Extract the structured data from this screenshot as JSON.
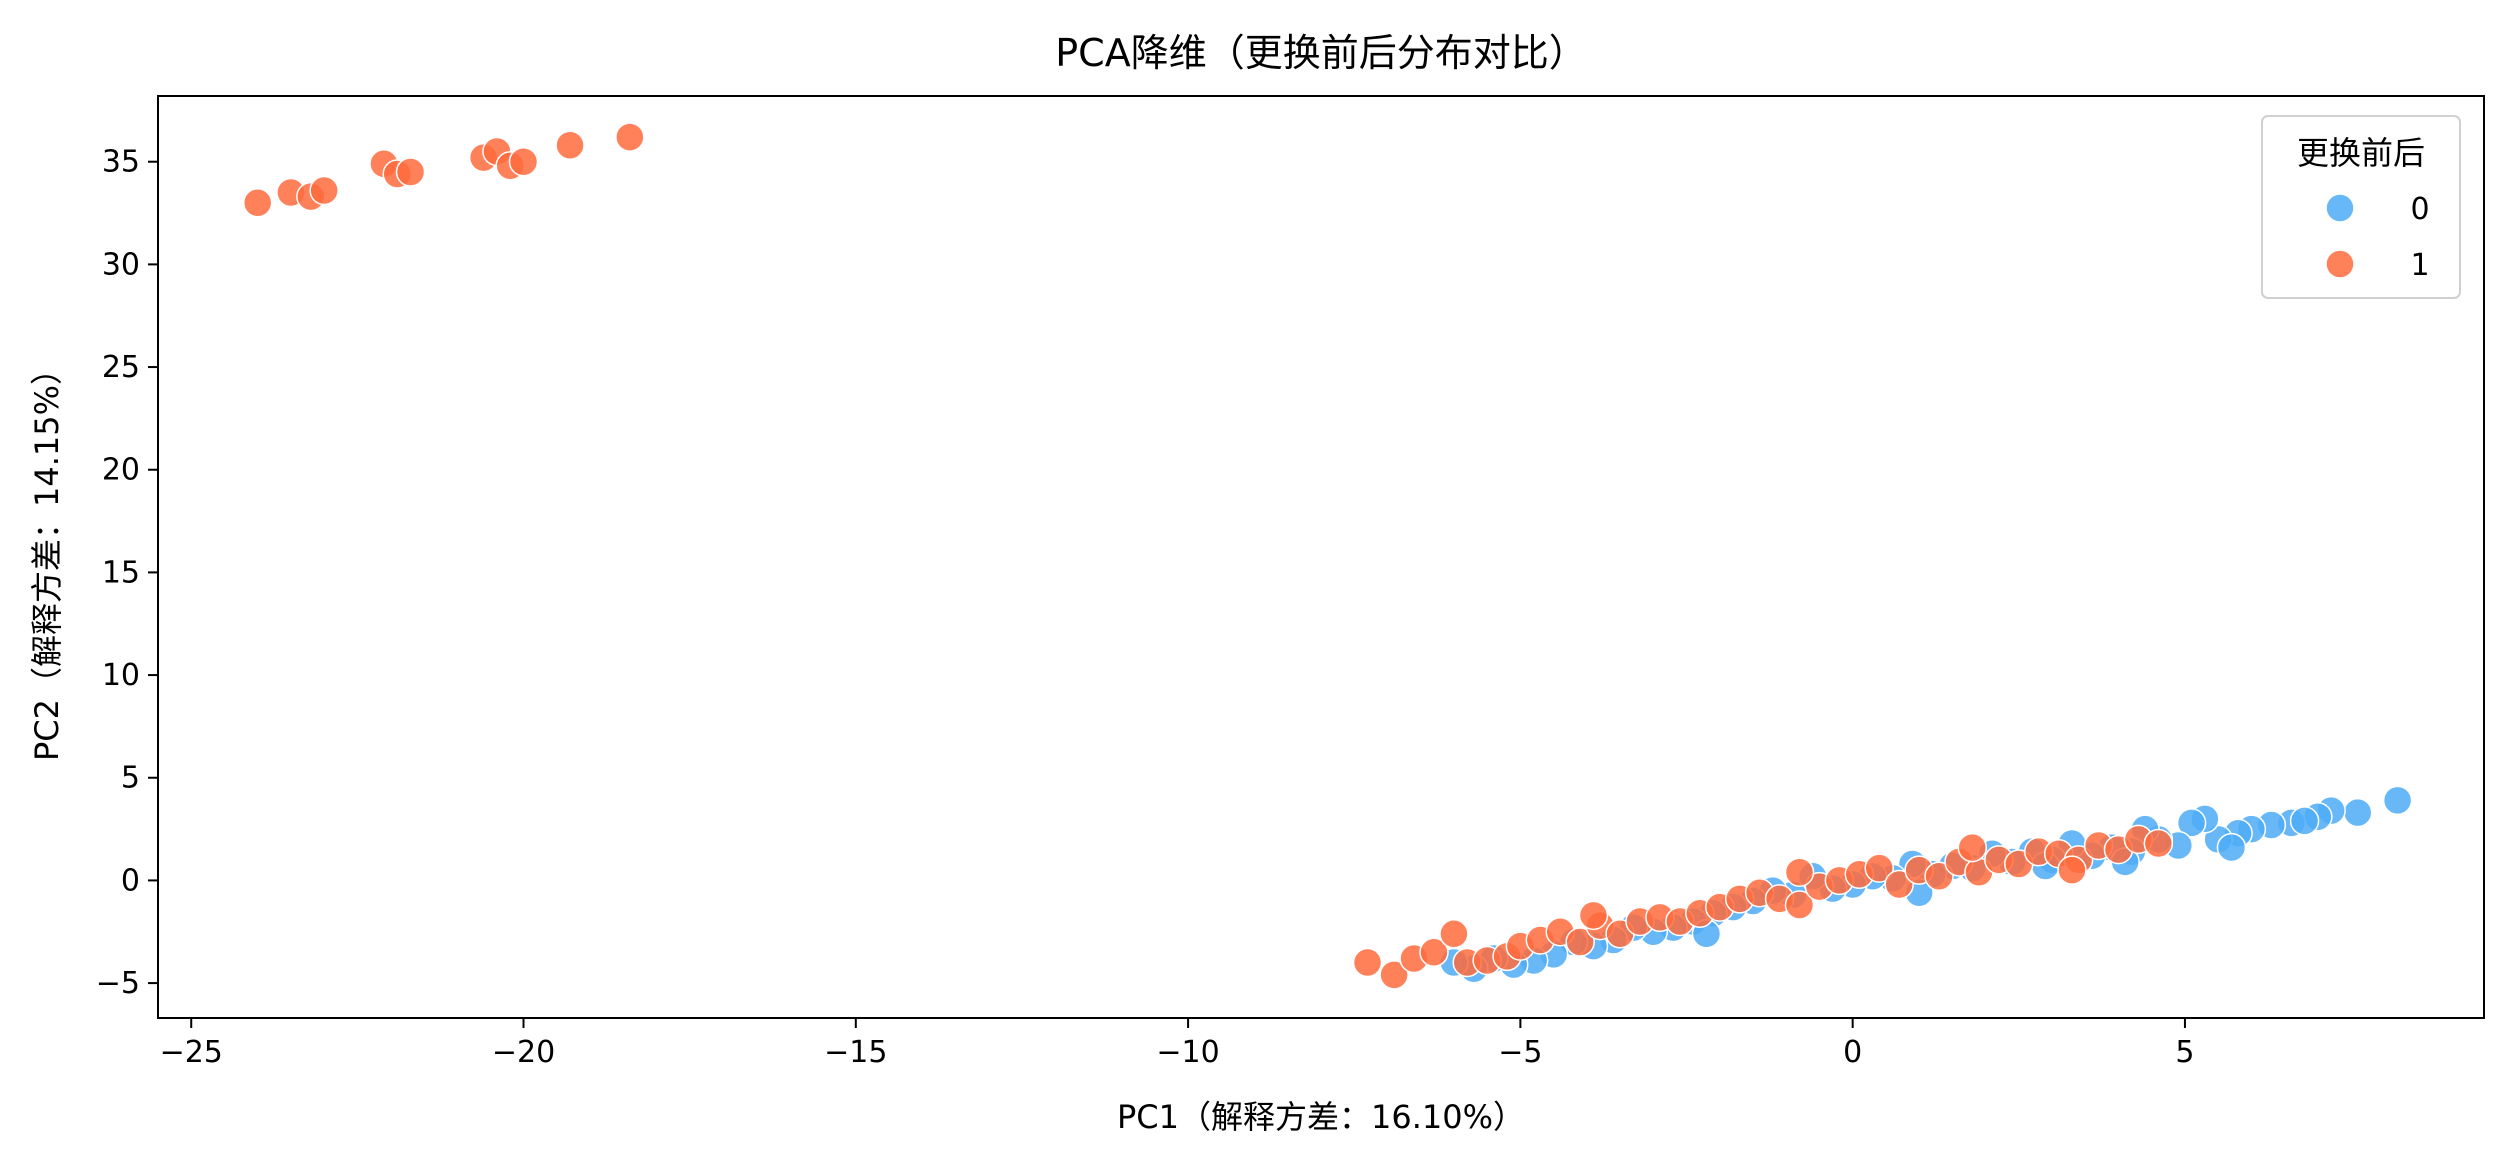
{
  "chart_data": {
    "type": "scatter",
    "title": "PCA降维（更换前后分布对比）",
    "xlabel": "PC1（解释方差：16.10%）",
    "ylabel": "PC2（解释方差：14.15%）",
    "xlim": [
      -25.5,
      9.5
    ],
    "ylim": [
      -6.7,
      38.2
    ],
    "xticks": [
      -25,
      -20,
      -15,
      -10,
      -5,
      0,
      5
    ],
    "yticks": [
      -5,
      0,
      5,
      10,
      15,
      20,
      25,
      30,
      35
    ],
    "grid": false,
    "legend": {
      "title": "更换前后",
      "position": "top-right"
    },
    "series": [
      {
        "name": "0",
        "color": "#4DABF7",
        "points": [
          [
            8.2,
            3.9
          ],
          [
            7.6,
            3.3
          ],
          [
            7.2,
            3.4
          ],
          [
            7.0,
            3.1
          ],
          [
            6.6,
            2.8
          ],
          [
            6.3,
            2.7
          ],
          [
            6.0,
            2.5
          ],
          [
            5.8,
            2.3
          ],
          [
            5.5,
            2.0
          ],
          [
            5.3,
            3.0
          ],
          [
            5.1,
            2.8
          ],
          [
            4.9,
            1.7
          ],
          [
            4.6,
            2.0
          ],
          [
            4.4,
            2.5
          ],
          [
            4.2,
            1.4
          ],
          [
            3.9,
            1.6
          ],
          [
            3.6,
            1.2
          ],
          [
            3.3,
            1.8
          ],
          [
            3.0,
            1.0
          ],
          [
            2.7,
            1.4
          ],
          [
            2.4,
            0.9
          ],
          [
            2.1,
            1.3
          ],
          [
            1.8,
            0.6
          ],
          [
            1.5,
            0.7
          ],
          [
            1.2,
            0.3
          ],
          [
            0.9,
            0.8
          ],
          [
            0.6,
            0.1
          ],
          [
            0.3,
            0.2
          ],
          [
            0.0,
            -0.2
          ],
          [
            -0.3,
            -0.4
          ],
          [
            -0.6,
            0.2
          ],
          [
            -0.9,
            -0.7
          ],
          [
            -1.2,
            -0.5
          ],
          [
            -1.5,
            -1.0
          ],
          [
            -1.8,
            -1.3
          ],
          [
            -2.1,
            -1.6
          ],
          [
            -2.4,
            -2.0
          ],
          [
            -2.7,
            -2.3
          ],
          [
            -3.0,
            -2.5
          ],
          [
            -3.3,
            -2.3
          ],
          [
            -3.6,
            -2.9
          ],
          [
            -3.9,
            -3.2
          ],
          [
            -4.2,
            -3.0
          ],
          [
            -4.5,
            -3.6
          ],
          [
            -4.8,
            -3.9
          ],
          [
            -5.1,
            -4.1
          ],
          [
            -5.4,
            -3.8
          ],
          [
            -5.7,
            -4.3
          ],
          [
            -6.0,
            -4.0
          ],
          [
            1.0,
            -0.6
          ],
          [
            2.9,
            0.7
          ],
          [
            5.7,
            1.6
          ],
          [
            6.8,
            2.9
          ],
          [
            -2.2,
            -2.6
          ],
          [
            4.1,
            0.9
          ]
        ]
      },
      {
        "name": "1",
        "color": "#FF6B3D",
        "points": [
          [
            -24.0,
            33.0
          ],
          [
            -23.5,
            33.5
          ],
          [
            -23.2,
            33.3
          ],
          [
            -23.0,
            33.6
          ],
          [
            -22.1,
            34.9
          ],
          [
            -21.9,
            34.4
          ],
          [
            -21.7,
            34.5
          ],
          [
            -20.6,
            35.2
          ],
          [
            -20.4,
            35.5
          ],
          [
            -20.2,
            34.8
          ],
          [
            -20.0,
            35.0
          ],
          [
            -19.3,
            35.8
          ],
          [
            -18.4,
            36.2
          ],
          [
            -7.3,
            -4.0
          ],
          [
            -6.9,
            -4.6
          ],
          [
            -6.6,
            -3.8
          ],
          [
            -6.3,
            -3.5
          ],
          [
            -6.0,
            -2.6
          ],
          [
            -5.8,
            -4.0
          ],
          [
            -5.5,
            -3.9
          ],
          [
            -5.2,
            -3.7
          ],
          [
            -5.0,
            -3.2
          ],
          [
            -4.7,
            -2.9
          ],
          [
            -4.4,
            -2.5
          ],
          [
            -4.1,
            -3.0
          ],
          [
            -3.8,
            -2.2
          ],
          [
            -3.5,
            -2.6
          ],
          [
            -3.2,
            -2.0
          ],
          [
            -2.9,
            -1.8
          ],
          [
            -2.6,
            -2.0
          ],
          [
            -2.3,
            -1.6
          ],
          [
            -2.0,
            -1.3
          ],
          [
            -1.7,
            -0.9
          ],
          [
            -1.4,
            -0.6
          ],
          [
            -1.1,
            -0.9
          ],
          [
            -0.8,
            -1.2
          ],
          [
            -0.5,
            -0.3
          ],
          [
            -0.2,
            0.0
          ],
          [
            0.1,
            0.3
          ],
          [
            0.4,
            0.6
          ],
          [
            0.7,
            -0.2
          ],
          [
            1.0,
            0.5
          ],
          [
            1.3,
            0.2
          ],
          [
            1.6,
            0.9
          ],
          [
            1.9,
            0.4
          ],
          [
            2.2,
            1.0
          ],
          [
            2.5,
            0.8
          ],
          [
            2.8,
            1.4
          ],
          [
            3.1,
            1.3
          ],
          [
            3.4,
            1.0
          ],
          [
            3.7,
            1.7
          ],
          [
            4.0,
            1.5
          ],
          [
            4.3,
            2.0
          ],
          [
            4.6,
            1.8
          ],
          [
            -0.8,
            0.4
          ],
          [
            1.8,
            1.6
          ],
          [
            3.3,
            0.5
          ],
          [
            -3.9,
            -1.7
          ]
        ]
      }
    ]
  }
}
